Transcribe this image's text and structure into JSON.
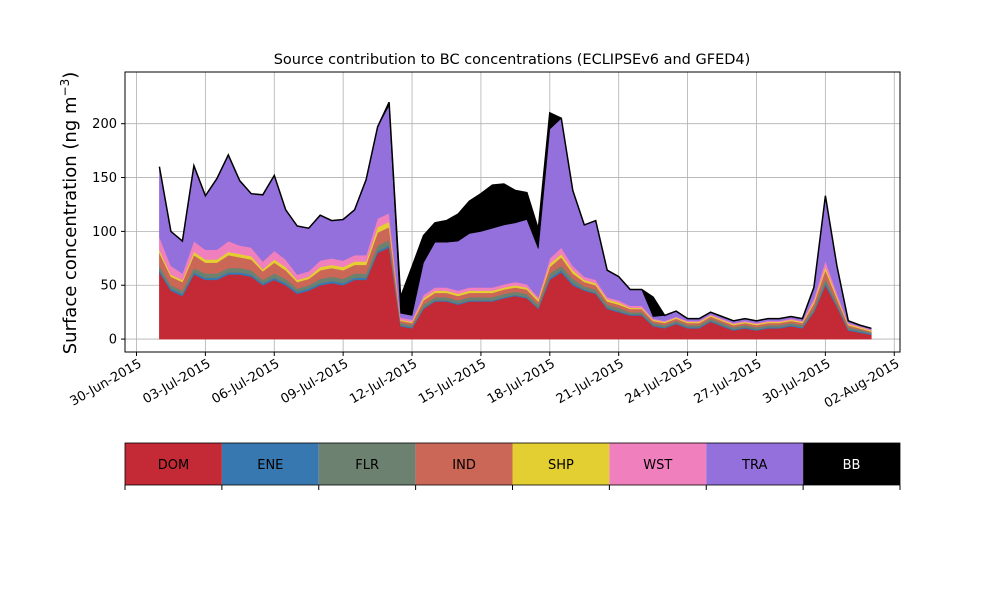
{
  "chart_data": {
    "type": "area",
    "stacked": true,
    "title": "Source contribution to BC concentrations (ECLIPSEv6 and GFED4)",
    "ylabel": "Surface concentration (ng m",
    "ylabel_sup": "−3",
    "ylabel_close": ")",
    "xlabel": "",
    "xlim": [
      "2015-06-29T12:00",
      "2015-08-02T06:00"
    ],
    "ylim": [
      -12,
      248
    ],
    "yticks": [
      0,
      50,
      100,
      150,
      200
    ],
    "xticks": [
      "2015-06-30",
      "2015-07-03",
      "2015-07-06",
      "2015-07-09",
      "2015-07-12",
      "2015-07-15",
      "2015-07-18",
      "2015-07-21",
      "2015-07-24",
      "2015-07-27",
      "2015-07-30",
      "2015-08-02"
    ],
    "xtick_labels": [
      "30-Jun-2015",
      "03-Jul-2015",
      "06-Jul-2015",
      "09-Jul-2015",
      "12-Jul-2015",
      "15-Jul-2015",
      "18-Jul-2015",
      "21-Jul-2015",
      "24-Jul-2015",
      "27-Jul-2015",
      "30-Jul-2015",
      "02-Aug-2015"
    ],
    "grid": true,
    "x": [
      "2015-07-01",
      "2015-07-01T12:00",
      "2015-07-02",
      "2015-07-02T12:00",
      "2015-07-03",
      "2015-07-03T12:00",
      "2015-07-04",
      "2015-07-04T12:00",
      "2015-07-05",
      "2015-07-05T12:00",
      "2015-07-06",
      "2015-07-06T12:00",
      "2015-07-07",
      "2015-07-07T12:00",
      "2015-07-08",
      "2015-07-08T12:00",
      "2015-07-09",
      "2015-07-09T12:00",
      "2015-07-10",
      "2015-07-10T12:00",
      "2015-07-11",
      "2015-07-11T12:00",
      "2015-07-12",
      "2015-07-12T12:00",
      "2015-07-13",
      "2015-07-13T12:00",
      "2015-07-14",
      "2015-07-14T12:00",
      "2015-07-15",
      "2015-07-15T12:00",
      "2015-07-16",
      "2015-07-16T12:00",
      "2015-07-17",
      "2015-07-17T12:00",
      "2015-07-18",
      "2015-07-18T12:00",
      "2015-07-19",
      "2015-07-19T12:00",
      "2015-07-20",
      "2015-07-20T12:00",
      "2015-07-21",
      "2015-07-21T12:00",
      "2015-07-22",
      "2015-07-22T12:00",
      "2015-07-23",
      "2015-07-23T12:00",
      "2015-07-24",
      "2015-07-24T12:00",
      "2015-07-25",
      "2015-07-25T12:00",
      "2015-07-26",
      "2015-07-26T12:00",
      "2015-07-27",
      "2015-07-27T12:00",
      "2015-07-28",
      "2015-07-28T12:00",
      "2015-07-29",
      "2015-07-29T12:00",
      "2015-07-30",
      "2015-07-30T12:00",
      "2015-07-31",
      "2015-07-31T12:00",
      "2015-08-01"
    ],
    "series": [
      {
        "name": "DOM",
        "color": "#c42a35",
        "values": [
          62,
          45,
          40,
          60,
          55,
          55,
          60,
          60,
          58,
          50,
          55,
          50,
          42,
          45,
          50,
          52,
          50,
          55,
          55,
          80,
          85,
          12,
          10,
          28,
          35,
          35,
          32,
          35,
          35,
          35,
          38,
          40,
          38,
          28,
          55,
          62,
          50,
          45,
          42,
          28,
          25,
          22,
          22,
          12,
          10,
          14,
          10,
          10,
          16,
          12,
          8,
          10,
          8,
          10,
          10,
          12,
          10,
          25,
          50,
          30,
          8,
          6,
          4
        ]
      },
      {
        "name": "ENE",
        "color": "#3878b0",
        "values": [
          2,
          2,
          2,
          2,
          2,
          2,
          2,
          2,
          2,
          2,
          2,
          2,
          2,
          2,
          2,
          2,
          2,
          2,
          2,
          2,
          2,
          1,
          1,
          1,
          1,
          1,
          1,
          1,
          1,
          1,
          1,
          1,
          1,
          1,
          2,
          2,
          2,
          1,
          1,
          1,
          1,
          1,
          1,
          1,
          1,
          1,
          1,
          1,
          1,
          1,
          1,
          1,
          1,
          1,
          1,
          1,
          1,
          1,
          2,
          1,
          1,
          1,
          1
        ]
      },
      {
        "name": "FLR",
        "color": "#6d8171",
        "values": [
          4,
          3,
          3,
          4,
          4,
          4,
          4,
          4,
          4,
          3,
          4,
          4,
          3,
          3,
          4,
          4,
          4,
          4,
          4,
          5,
          5,
          2,
          2,
          3,
          3,
          3,
          3,
          3,
          3,
          3,
          3,
          3,
          3,
          3,
          4,
          4,
          4,
          3,
          3,
          3,
          3,
          2,
          2,
          2,
          2,
          2,
          2,
          2,
          2,
          2,
          2,
          2,
          2,
          2,
          2,
          2,
          2,
          3,
          4,
          3,
          2,
          2,
          1
        ]
      },
      {
        "name": "IND",
        "color": "#cb6756",
        "values": [
          12,
          8,
          8,
          12,
          10,
          10,
          12,
          10,
          10,
          8,
          10,
          8,
          6,
          6,
          8,
          8,
          8,
          8,
          8,
          12,
          12,
          2,
          2,
          4,
          4,
          4,
          4,
          4,
          4,
          4,
          4,
          4,
          4,
          3,
          6,
          8,
          5,
          4,
          4,
          3,
          3,
          3,
          3,
          2,
          2,
          2,
          2,
          2,
          2,
          2,
          2,
          2,
          2,
          2,
          2,
          2,
          2,
          4,
          8,
          4,
          2,
          1,
          1
        ]
      },
      {
        "name": "SHP",
        "color": "#e4cf32",
        "values": [
          3,
          2,
          2,
          3,
          3,
          3,
          3,
          3,
          3,
          2,
          3,
          3,
          2,
          2,
          3,
          3,
          3,
          3,
          3,
          5,
          5,
          1,
          1,
          2,
          2,
          2,
          2,
          2,
          2,
          2,
          2,
          2,
          2,
          2,
          3,
          3,
          3,
          2,
          2,
          2,
          2,
          1,
          1,
          1,
          1,
          1,
          1,
          1,
          1,
          1,
          1,
          1,
          1,
          1,
          1,
          1,
          1,
          2,
          3,
          2,
          1,
          1,
          1
        ]
      },
      {
        "name": "WST",
        "color": "#f07fbd",
        "values": [
          12,
          8,
          6,
          10,
          9,
          9,
          10,
          8,
          8,
          7,
          8,
          7,
          5,
          5,
          6,
          6,
          6,
          6,
          6,
          8,
          8,
          2,
          2,
          3,
          3,
          3,
          3,
          3,
          3,
          3,
          3,
          3,
          3,
          2,
          5,
          6,
          4,
          3,
          3,
          2,
          2,
          2,
          2,
          1,
          1,
          1,
          1,
          1,
          1,
          1,
          1,
          1,
          1,
          1,
          1,
          1,
          1,
          3,
          6,
          3,
          1,
          1,
          1
        ]
      },
      {
        "name": "TRA",
        "color": "#9370db",
        "values": [
          65,
          32,
          30,
          70,
          50,
          66,
          80,
          60,
          50,
          62,
          70,
          46,
          45,
          40,
          42,
          35,
          38,
          42,
          70,
          85,
          100,
          4,
          4,
          30,
          42,
          42,
          46,
          50,
          52,
          55,
          55,
          55,
          60,
          45,
          120,
          120,
          70,
          48,
          55,
          25,
          22,
          15,
          15,
          2,
          5,
          5,
          2,
          2,
          2,
          2,
          2,
          2,
          2,
          2,
          2,
          2,
          2,
          10,
          60,
          25,
          2,
          1,
          1
        ]
      },
      {
        "name": "BB",
        "color": "#000000",
        "values": [
          0,
          0,
          0,
          0,
          0,
          0,
          0,
          0,
          0,
          0,
          0,
          0,
          0,
          0,
          0,
          0,
          0,
          0,
          0,
          0,
          3,
          15,
          45,
          25,
          18,
          20,
          25,
          30,
          35,
          40,
          38,
          30,
          25,
          18,
          15,
          0,
          0,
          0,
          0,
          0,
          0,
          0,
          0,
          18,
          0,
          0,
          0,
          0,
          0,
          0,
          0,
          0,
          0,
          0,
          0,
          0,
          0,
          0,
          0,
          0,
          0,
          0,
          0
        ]
      }
    ]
  },
  "legend": {
    "placement": "bottom",
    "items": [
      "DOM",
      "ENE",
      "FLR",
      "IND",
      "SHP",
      "WST",
      "TRA",
      "BB"
    ]
  }
}
